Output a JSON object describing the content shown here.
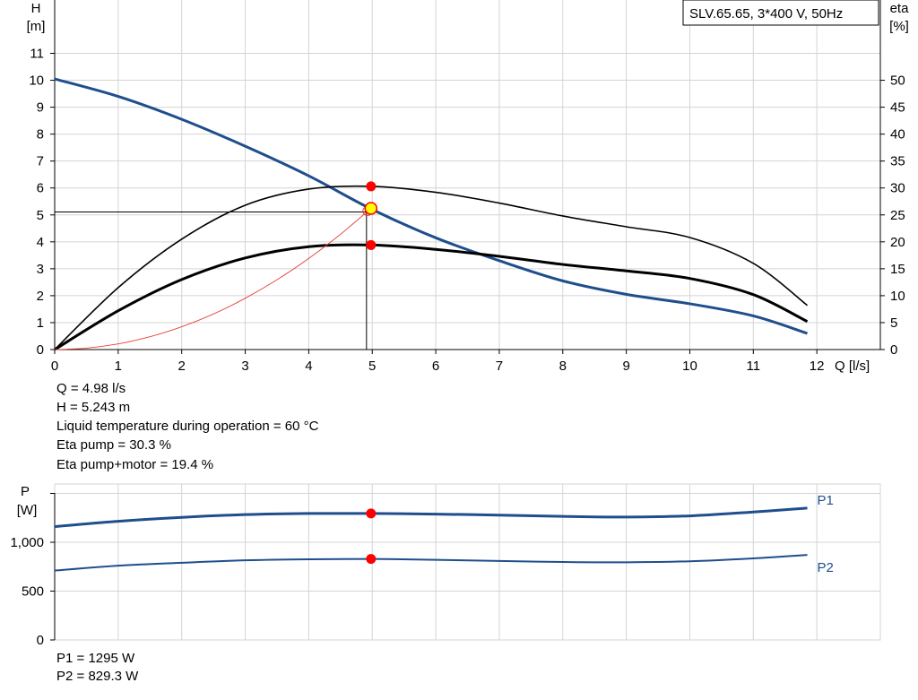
{
  "chart_data": [
    {
      "type": "line",
      "title": "SLV.65.65, 3*400 V, 50Hz",
      "xlabel": "Q [l/s]",
      "ylabel": "H\n[m]",
      "y2label": "eta\n[%]",
      "xlim": [
        0,
        13
      ],
      "ylim": [
        0,
        11
      ],
      "y2lim": [
        0,
        55
      ],
      "grid": true,
      "x_ticks": [
        0,
        1,
        2,
        3,
        4,
        5,
        6,
        7,
        8,
        9,
        10,
        11,
        12
      ],
      "y_ticks": [
        0,
        1,
        2,
        3,
        4,
        5,
        6,
        7,
        8,
        9,
        10,
        11
      ],
      "y2_ticks": [
        0,
        5,
        10,
        15,
        20,
        25,
        30,
        35,
        40,
        45,
        50
      ],
      "series": [
        {
          "key": "head",
          "axis": "left",
          "color": "#1f4e8c",
          "width": 3,
          "x": [
            0,
            1,
            2,
            3,
            4,
            5,
            6,
            7,
            8,
            9,
            10,
            11,
            11.85
          ],
          "y": [
            10.05,
            9.4,
            8.55,
            7.55,
            6.45,
            5.2,
            4.15,
            3.3,
            2.55,
            2.05,
            1.7,
            1.25,
            0.6
          ]
        },
        {
          "key": "eta-pump",
          "axis": "right",
          "color": "#000000",
          "width": 1.6,
          "x": [
            0,
            1,
            2,
            3,
            4,
            5,
            6,
            7,
            8,
            9,
            10,
            11,
            11.85
          ],
          "y": [
            0,
            11.5,
            20.5,
            26.8,
            29.8,
            30.3,
            29.2,
            27.2,
            24.8,
            22.8,
            20.8,
            16,
            8.2
          ]
        },
        {
          "key": "eta-total",
          "axis": "right",
          "color": "#000000",
          "width": 3,
          "x": [
            0,
            1,
            2,
            3,
            4,
            5,
            6,
            7,
            8,
            9,
            10,
            11,
            11.85
          ],
          "y": [
            0,
            7.2,
            13,
            17,
            19.1,
            19.4,
            18.6,
            17.3,
            15.8,
            14.6,
            13.2,
            10.2,
            5.2
          ]
        },
        {
          "key": "system-curve",
          "axis": "left",
          "color": "#e8403a",
          "width": 0.9,
          "x": [
            0,
            0.5,
            1,
            1.5,
            2,
            2.5,
            3,
            3.5,
            4,
            4.5,
            4.98
          ],
          "y": [
            0,
            0.053,
            0.211,
            0.475,
            0.846,
            1.321,
            1.903,
            2.59,
            3.383,
            4.281,
            5.243
          ]
        }
      ],
      "operating_point": {
        "Q": 4.98,
        "H": 5.243,
        "eta_pump": 30.3,
        "eta_total": 19.4
      }
    },
    {
      "type": "line",
      "title": "",
      "ylabel": "P\n[W]",
      "xlim": [
        0,
        13
      ],
      "ylim": [
        0,
        1500
      ],
      "grid": true,
      "y_ticks": [
        0,
        500,
        1000
      ],
      "y_tick_labels": [
        "0",
        "500",
        "1,000"
      ],
      "series": [
        {
          "key": "P1",
          "name": "P1",
          "color": "#1f4e8c",
          "width": 3,
          "x": [
            0,
            1,
            2,
            3,
            4,
            5,
            6,
            7,
            8,
            9,
            10,
            11,
            11.85
          ],
          "y": [
            1160,
            1215,
            1255,
            1283,
            1295,
            1295,
            1288,
            1278,
            1265,
            1258,
            1270,
            1310,
            1350
          ]
        },
        {
          "key": "P2",
          "name": "P2",
          "color": "#1f4e8c",
          "width": 2,
          "x": [
            0,
            1,
            2,
            3,
            4,
            5,
            6,
            7,
            8,
            9,
            10,
            11,
            11.85
          ],
          "y": [
            710,
            760,
            790,
            815,
            826,
            829,
            820,
            808,
            798,
            795,
            805,
            835,
            870
          ]
        }
      ],
      "operating_point": {
        "Q": 4.98,
        "P1": 1295,
        "P2": 829.3
      }
    }
  ],
  "info_upper": {
    "q": "Q = 4.98 l/s",
    "h": "H = 5.243 m",
    "temp": "Liquid temperature during operation = 60 °C",
    "eta_pump": "Eta pump = 30.3 %",
    "eta_total": "Eta pump+motor = 19.4 %"
  },
  "info_lower": {
    "p1": "P1 = 1295 W",
    "p2": "P2 = 829.3 W"
  },
  "colors": {
    "curve_blue": "#1f4e8c",
    "marker_red": "#ff0000",
    "grid": "#d4d4d4",
    "op_fill": "#ffff00"
  }
}
